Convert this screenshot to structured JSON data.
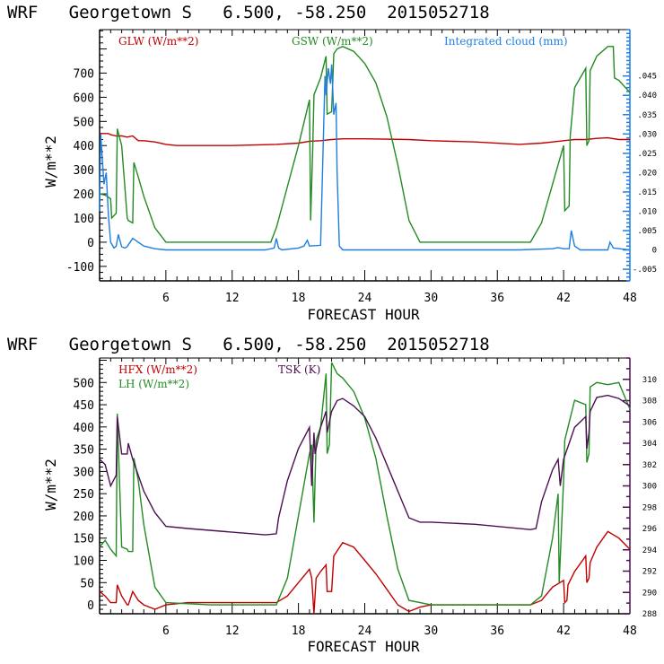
{
  "chart_data": [
    {
      "type": "line",
      "title": "WRF   Georgetown S   6.500, -58.250  2015052718",
      "xlabel": "FORECAST HOUR",
      "ylabel": "W/m**2",
      "xlim": [
        0,
        48
      ],
      "ylim": [
        -160,
        880
      ],
      "xticks": [
        6,
        12,
        18,
        24,
        30,
        36,
        42,
        48
      ],
      "xtick_labels": [
        "6",
        "12",
        "18",
        "24",
        "30",
        "36",
        "42",
        "48"
      ],
      "yticks": [
        -100,
        0,
        100,
        200,
        300,
        400,
        500,
        600,
        700
      ],
      "ytick_labels": [
        "-100",
        "0",
        "100",
        "200",
        "300",
        "400",
        "500",
        "600",
        "700"
      ],
      "y2label": "Integrated cloud (mm)",
      "y2lim": [
        -0.008,
        0.057
      ],
      "y2ticks": [
        -0.005,
        0,
        0.005,
        0.01,
        0.015,
        0.02,
        0.025,
        0.03,
        0.035,
        0.04,
        0.045
      ],
      "y2tick_labels": [
        "-.005",
        "0",
        ".005",
        ".010",
        ".015",
        ".020",
        ".025",
        ".030",
        ".035",
        ".040",
        ".045"
      ],
      "grid": false,
      "legend_placement": "top",
      "series": [
        {
          "name": "GLW (W/m**2)",
          "color": "#c00000",
          "axis": "left",
          "x": [
            0,
            0.8,
            1,
            1.5,
            2,
            2.5,
            3,
            3.5,
            4,
            5,
            6,
            7,
            8,
            12,
            16,
            18,
            19,
            20,
            21,
            22,
            24,
            28,
            30,
            34,
            38,
            40,
            41,
            42,
            43,
            44,
            45,
            46,
            47,
            48
          ],
          "y": [
            450,
            450,
            445,
            440,
            440,
            435,
            440,
            420,
            420,
            415,
            405,
            400,
            400,
            400,
            405,
            410,
            418,
            420,
            425,
            428,
            428,
            425,
            420,
            415,
            405,
            410,
            415,
            420,
            425,
            425,
            430,
            432,
            425,
            425
          ]
        },
        {
          "name": "GSW (W/m**2)",
          "color": "#228b22",
          "axis": "left",
          "x": [
            0,
            0.5,
            1,
            1.1,
            1.5,
            1.6,
            2,
            2.5,
            2.6,
            3,
            3.1,
            3.5,
            4,
            5,
            6,
            15.5,
            16,
            17,
            18,
            19,
            19.1,
            19.3,
            19.4,
            20,
            20.5,
            20.6,
            21,
            21.2,
            21.5,
            22,
            23,
            24,
            25,
            26,
            27,
            28,
            29,
            39,
            40,
            41,
            42,
            42.1,
            42.5,
            42.6,
            43,
            44,
            44.1,
            44.3,
            44.4,
            45,
            46,
            46.5,
            46.6,
            47,
            48
          ],
          "y": [
            200,
            195,
            180,
            100,
            120,
            470,
            400,
            100,
            90,
            80,
            330,
            270,
            190,
            60,
            0,
            0,
            60,
            230,
            400,
            590,
            90,
            400,
            610,
            680,
            770,
            530,
            540,
            780,
            800,
            810,
            790,
            740,
            660,
            520,
            320,
            90,
            0,
            0,
            80,
            240,
            400,
            130,
            150,
            440,
            640,
            720,
            400,
            420,
            710,
            770,
            810,
            810,
            680,
            670,
            620
          ]
        },
        {
          "name": "Integrated cloud (mm)",
          "color": "#1e7fe0",
          "axis": "right",
          "x": [
            0,
            0.1,
            0.4,
            0.6,
            0.8,
            1,
            1.3,
            1.5,
            1.7,
            2,
            2.3,
            2.5,
            3,
            3.5,
            4,
            5,
            6,
            15,
            15.8,
            16,
            16.2,
            16.5,
            18,
            18.5,
            18.8,
            19,
            20,
            20.4,
            20.5,
            20.7,
            20.9,
            21,
            21.2,
            21.4,
            21.5,
            21.7,
            22,
            23,
            24,
            26,
            30,
            38,
            41,
            41.5,
            42,
            42.5,
            42.7,
            43,
            43.5,
            46,
            46.2,
            46.5,
            48
          ],
          "y": [
            0.01,
            0.03,
            0.017,
            0.02,
            0.009,
            0.002,
            0.0005,
            0.001,
            0.004,
            0.0008,
            0.0005,
            0.0009,
            0.003,
            0.002,
            0.001,
            0.0003,
            0,
            0,
            0.0005,
            0.003,
            0.0005,
            0,
            0.0005,
            0.001,
            0.0025,
            0.001,
            0.0012,
            0.045,
            0.04,
            0.047,
            0.043,
            0.048,
            0.035,
            0.038,
            0.02,
            0.001,
            0,
            0,
            0,
            0,
            0,
            0,
            0.0003,
            0.0006,
            0.0003,
            0.0003,
            0.005,
            0.001,
            0,
            0,
            0.002,
            0.0005,
            0
          ]
        }
      ]
    },
    {
      "type": "line",
      "title": "WRF   Georgetown S   6.500, -58.250  2015052718",
      "xlabel": "FORECAST HOUR",
      "ylabel": "W/m**2",
      "xlim": [
        0,
        48
      ],
      "ylim": [
        -20,
        555
      ],
      "xticks": [
        6,
        12,
        18,
        24,
        30,
        36,
        42,
        48
      ],
      "xtick_labels": [
        "6",
        "12",
        "18",
        "24",
        "30",
        "36",
        "42",
        "48"
      ],
      "yticks": [
        0,
        50,
        100,
        150,
        200,
        250,
        300,
        350,
        400,
        450,
        500
      ],
      "ytick_labels": [
        "0",
        "50",
        "100",
        "150",
        "200",
        "250",
        "300",
        "350",
        "400",
        "450",
        "500"
      ],
      "y2label": "TSK (K)",
      "y2lim": [
        288,
        312
      ],
      "y2ticks": [
        288,
        290,
        292,
        294,
        296,
        298,
        300,
        302,
        304,
        306,
        308,
        310
      ],
      "y2tick_labels": [
        "288",
        "290",
        "292",
        "294",
        "296",
        "298",
        "300",
        "302",
        "304",
        "306",
        "308",
        "310"
      ],
      "grid": false,
      "legend_placement": "top",
      "series": [
        {
          "name": "HFX (W/m**2)",
          "color": "#c00000",
          "axis": "left",
          "x": [
            0,
            0.5,
            1,
            1.5,
            1.6,
            2,
            2.5,
            2.6,
            3,
            3.5,
            4,
            5,
            6,
            8,
            16,
            17,
            18,
            19,
            19.2,
            19.4,
            19.6,
            20,
            20.5,
            20.6,
            21,
            21.2,
            22,
            23,
            24,
            25,
            26,
            27,
            28,
            29,
            30,
            39,
            40,
            41,
            42,
            42.1,
            42.3,
            42.4,
            43,
            44,
            44.1,
            44.3,
            44.4,
            45,
            46,
            47,
            48
          ],
          "y": [
            30,
            20,
            5,
            5,
            45,
            20,
            0,
            0,
            30,
            10,
            0,
            -10,
            0,
            5,
            5,
            20,
            50,
            80,
            60,
            -20,
            60,
            75,
            90,
            30,
            30,
            110,
            140,
            130,
            100,
            70,
            35,
            0,
            -15,
            -5,
            0,
            0,
            10,
            40,
            55,
            5,
            10,
            45,
            75,
            110,
            50,
            60,
            95,
            130,
            165,
            150,
            125
          ]
        },
        {
          "name": "LH (W/m**2)",
          "color": "#228b22",
          "axis": "left",
          "x": [
            0,
            0.5,
            1,
            1.5,
            1.6,
            2,
            2.5,
            2.6,
            3,
            3.1,
            3.5,
            4,
            5,
            6,
            10,
            16,
            17,
            18,
            19,
            19.2,
            19.4,
            19.6,
            20,
            20.5,
            20.6,
            20.8,
            21,
            21.5,
            22,
            23,
            24,
            25,
            26,
            27,
            28,
            29,
            30,
            39,
            40,
            41,
            41.5,
            41.6,
            42,
            42.1,
            43,
            44,
            44.1,
            44.3,
            44.4,
            45,
            46,
            47,
            48
          ],
          "y": [
            130,
            145,
            125,
            110,
            430,
            130,
            125,
            120,
            120,
            330,
            280,
            180,
            40,
            5,
            0,
            0,
            60,
            200,
            340,
            360,
            185,
            370,
            400,
            520,
            340,
            360,
            545,
            520,
            510,
            480,
            420,
            330,
            200,
            80,
            10,
            5,
            0,
            0,
            20,
            150,
            250,
            50,
            280,
            370,
            460,
            450,
            320,
            340,
            490,
            500,
            495,
            500,
            440
          ]
        },
        {
          "name": "TSK (K)",
          "color": "#4b1050",
          "axis": "right",
          "x": [
            0,
            0.5,
            1,
            1.5,
            1.6,
            2,
            2.5,
            2.6,
            3,
            3.5,
            4,
            5,
            6,
            8,
            15,
            16,
            16.2,
            17,
            18,
            19,
            19.2,
            19.4,
            19.5,
            20,
            20.5,
            20.6,
            21,
            21.5,
            22,
            23,
            24,
            25,
            26,
            27,
            28,
            28.5,
            29,
            30,
            34,
            39,
            39.5,
            40,
            41,
            41.5,
            41.7,
            42,
            42.5,
            43,
            43.5,
            44,
            44.1,
            44.3,
            44.4,
            45,
            46,
            47,
            48
          ],
          "y": [
            302.5,
            302,
            300,
            301,
            306.5,
            303,
            303,
            304,
            302.5,
            301,
            299.5,
            297.5,
            296.2,
            296,
            295.4,
            295.5,
            297,
            300.5,
            303.5,
            305.5,
            300,
            305,
            303,
            305.5,
            307,
            305,
            307,
            308,
            308.2,
            307.5,
            306.5,
            304.5,
            302,
            299.5,
            297,
            296.8,
            296.6,
            296.6,
            296.4,
            295.9,
            296,
            298.5,
            301.5,
            302.5,
            300,
            302.5,
            304,
            305.5,
            306,
            306.5,
            303.5,
            305,
            307,
            308.3,
            308.5,
            308.2,
            307.5
          ]
        }
      ]
    }
  ]
}
